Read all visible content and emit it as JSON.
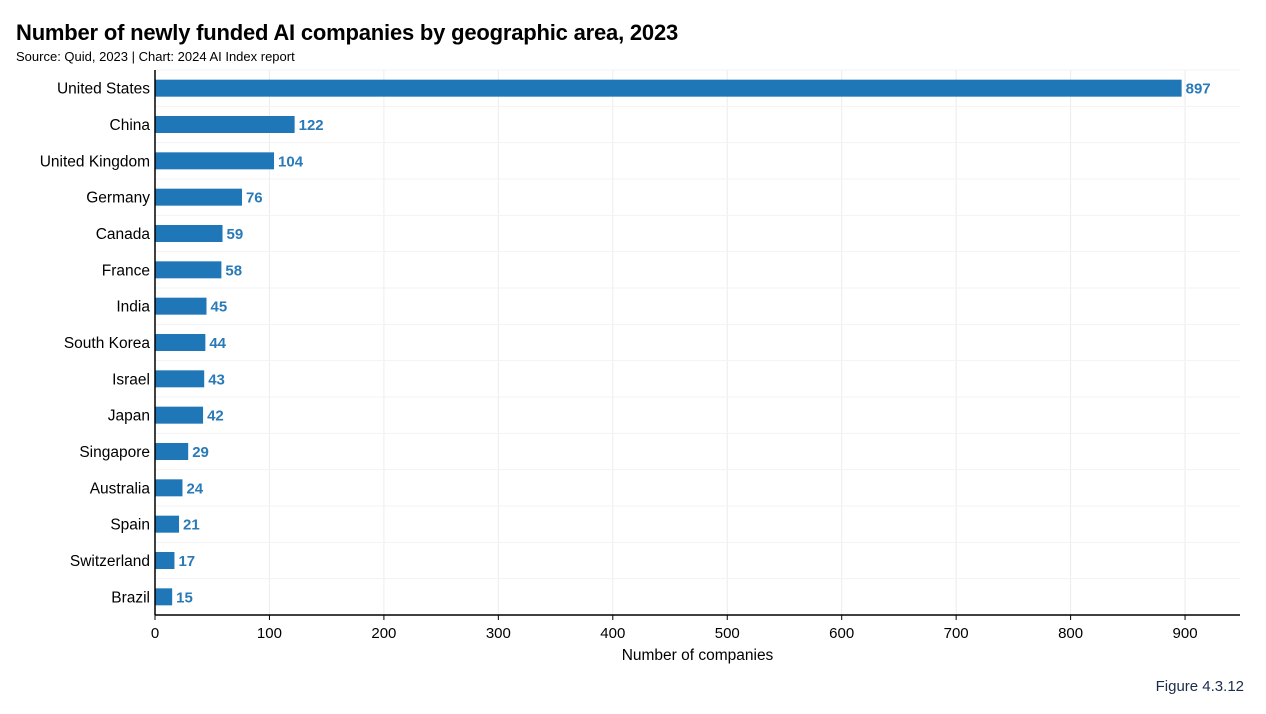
{
  "title": "Number of newly funded AI companies by geographic area, 2023",
  "subtitle": "Source: Quid, 2023 | Chart: 2024 AI Index report",
  "figure_label": "Figure 4.3.12",
  "colors": {
    "bar": "#1f77b8",
    "value_label": "#2a7ab8",
    "grid": "#ececec",
    "axis": "#000000",
    "figure_label": "#1a2b4b"
  },
  "chart_data": {
    "type": "bar",
    "orientation": "horizontal",
    "title": "Number of newly funded AI companies by geographic area, 2023",
    "xlabel": "Number of companies",
    "ylabel": "",
    "categories": [
      "United States",
      "China",
      "United Kingdom",
      "Germany",
      "Canada",
      "France",
      "India",
      "South Korea",
      "Israel",
      "Japan",
      "Singapore",
      "Australia",
      "Spain",
      "Switzerland",
      "Brazil"
    ],
    "values": [
      897,
      122,
      104,
      76,
      59,
      58,
      45,
      44,
      43,
      42,
      29,
      24,
      21,
      17,
      15
    ],
    "xlim": [
      0,
      940
    ],
    "xticks": [
      0,
      100,
      200,
      300,
      400,
      500,
      600,
      700,
      800,
      900
    ],
    "grid": true,
    "data_labels": true,
    "legend": false
  }
}
